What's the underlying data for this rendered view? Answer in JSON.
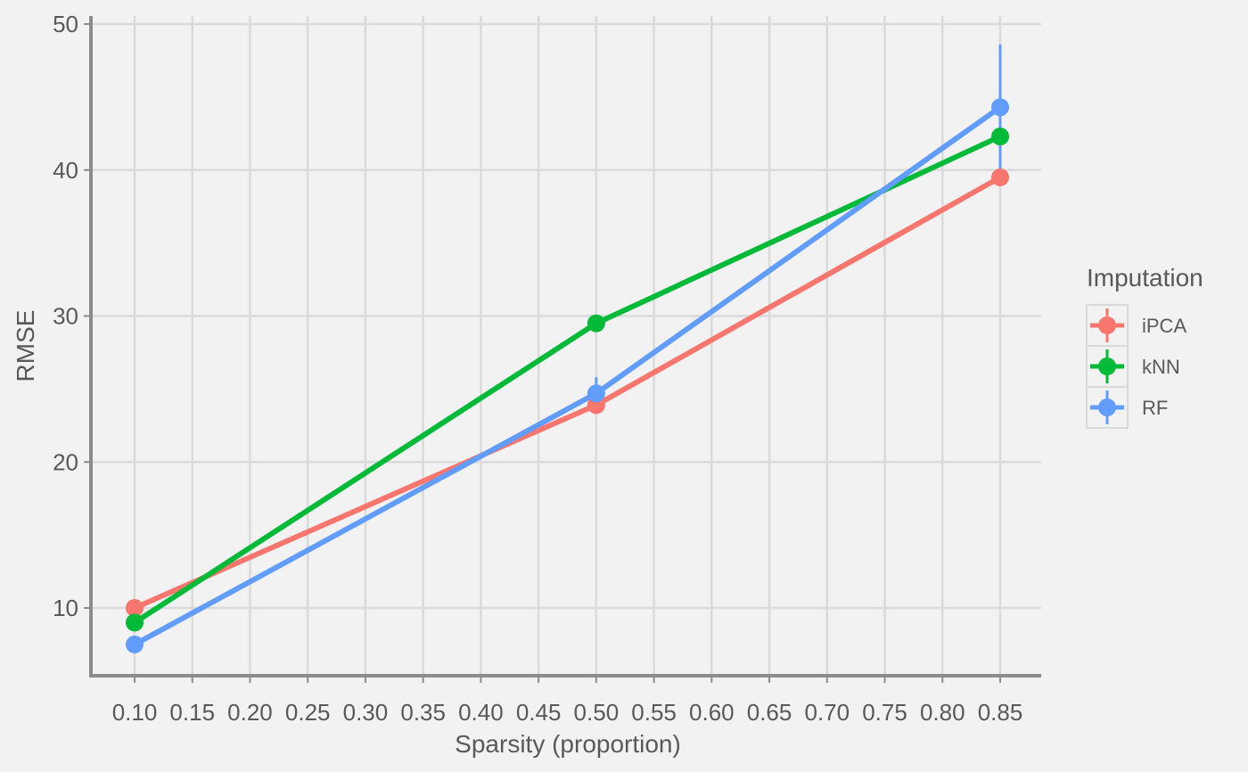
{
  "chart_data": {
    "type": "line",
    "title": "",
    "xlabel": "Sparsity (proportion)",
    "ylabel": "RMSE",
    "xlim": [
      0.1,
      0.85
    ],
    "ylim": [
      5.3,
      50.3
    ],
    "x_ticks": [
      0.1,
      0.15,
      0.2,
      0.25,
      0.3,
      0.35,
      0.4,
      0.45,
      0.5,
      0.55,
      0.6,
      0.65,
      0.7,
      0.75,
      0.8,
      0.85
    ],
    "x_tick_labels": [
      "0.10",
      "0.15",
      "0.20",
      "0.25",
      "0.30",
      "0.35",
      "0.40",
      "0.45",
      "0.50",
      "0.55",
      "0.60",
      "0.65",
      "0.70",
      "0.75",
      "0.80",
      "0.85"
    ],
    "y_ticks": [
      10,
      20,
      30,
      40,
      50
    ],
    "y_tick_labels": [
      "10",
      "20",
      "30",
      "40",
      "50"
    ],
    "grid": true,
    "legend": {
      "title": "Imputation",
      "position": "right"
    },
    "x": [
      0.1,
      0.5,
      0.85
    ],
    "series": [
      {
        "name": "iPCA",
        "color": "#f8766d",
        "values": [
          10.0,
          23.9,
          39.5
        ],
        "error_low": [
          10.0,
          23.7,
          39.3
        ],
        "error_high": [
          10.0,
          24.1,
          39.7
        ]
      },
      {
        "name": "kNN",
        "color": "#00ba38",
        "values": [
          9.0,
          29.5,
          42.3
        ],
        "error_low": [
          8.9,
          29.4,
          42.1
        ],
        "error_high": [
          9.1,
          29.6,
          42.5
        ]
      },
      {
        "name": "RF",
        "color": "#619cff",
        "values": [
          7.5,
          24.7,
          44.3
        ],
        "error_low": [
          7.4,
          23.6,
          40.0
        ],
        "error_high": [
          7.6,
          25.8,
          48.6
        ]
      }
    ]
  }
}
